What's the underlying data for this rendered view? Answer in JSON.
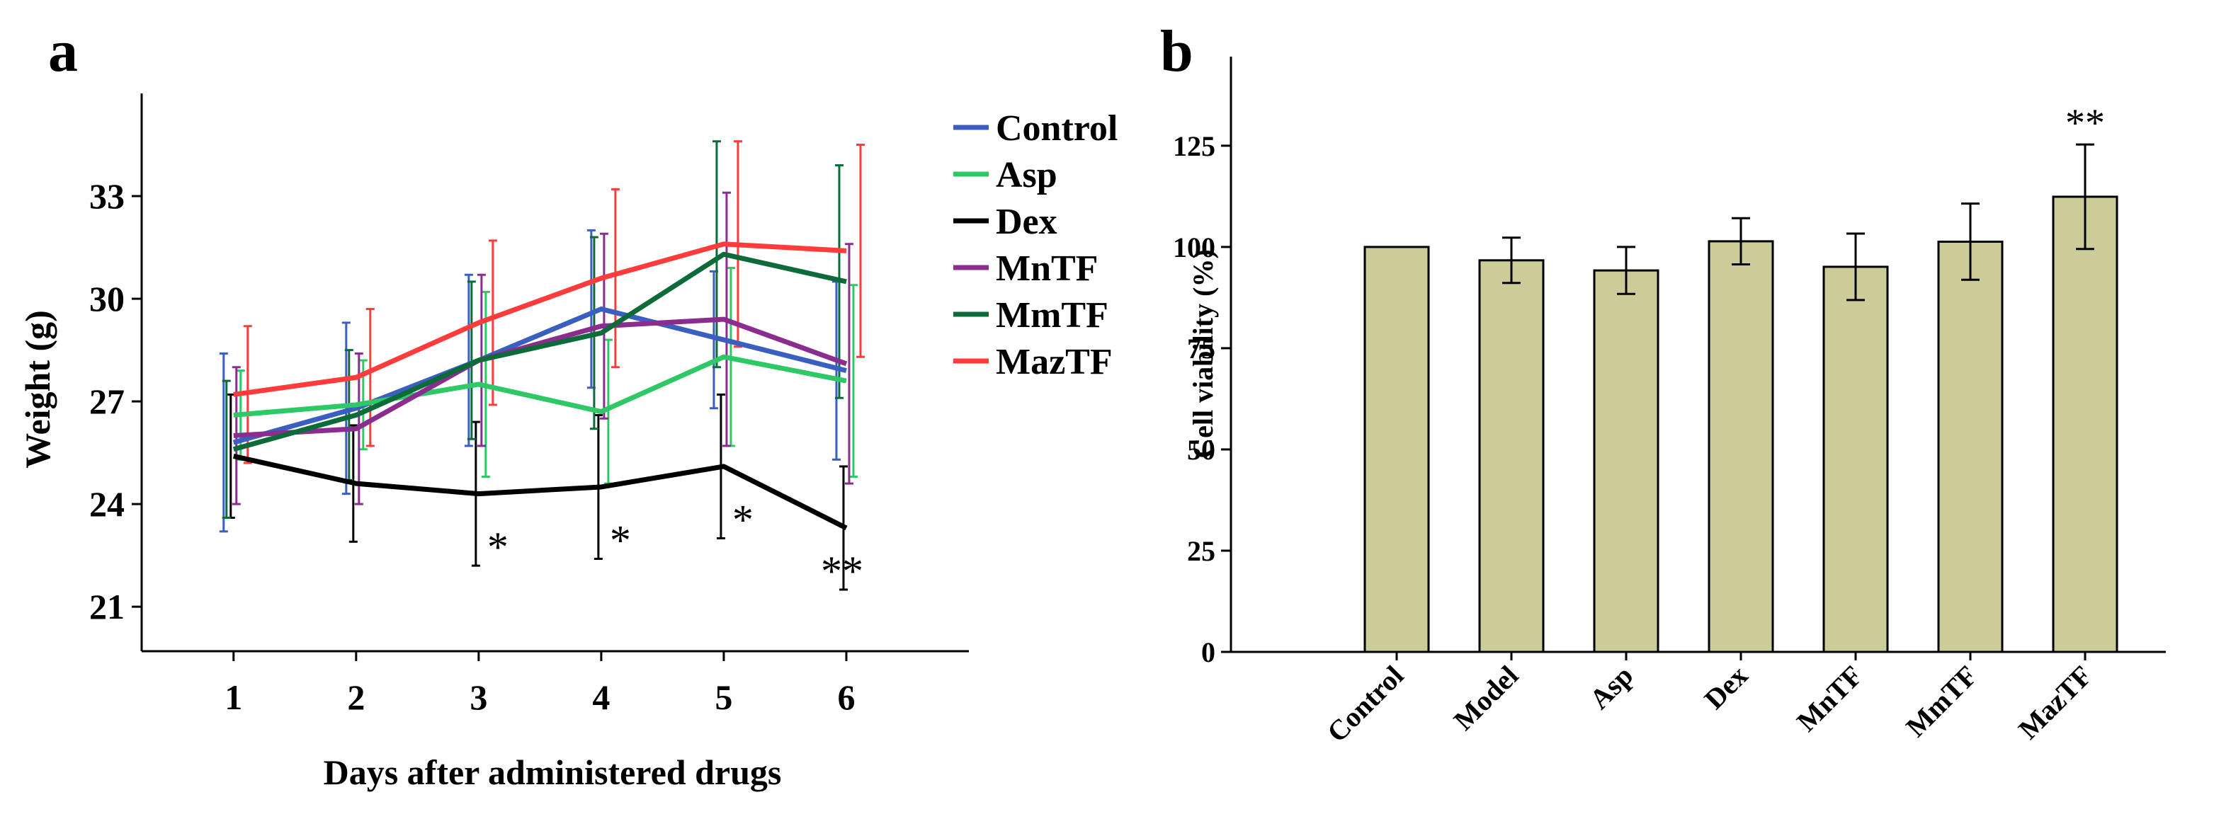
{
  "chart_data": [
    {
      "panel": "a",
      "type": "line",
      "title": "",
      "xlabel": "Days after administered drugs",
      "ylabel": "Weight (g)",
      "x": [
        1,
        2,
        3,
        4,
        5,
        6
      ],
      "xticks": [
        "1",
        "2",
        "3",
        "4",
        "5",
        "6"
      ],
      "xlim": [
        0.25,
        7
      ],
      "yticks": [
        21,
        24,
        27,
        30,
        33
      ],
      "ylim": [
        19.7,
        36
      ],
      "legend": "top-right",
      "series": [
        {
          "name": "Control",
          "color": "#3b5fc0",
          "values": [
            25.8,
            26.8,
            28.2,
            29.7,
            28.8,
            27.9
          ],
          "err": [
            2.6,
            2.5,
            2.5,
            2.3,
            2.0,
            2.6
          ]
        },
        {
          "name": "Asp",
          "color": "#2ec866",
          "values": [
            26.6,
            26.9,
            27.5,
            26.7,
            28.3,
            27.6
          ],
          "err": [
            1.3,
            1.3,
            2.7,
            2.1,
            2.6,
            2.8
          ]
        },
        {
          "name": "Dex",
          "color": "#000000",
          "values": [
            25.4,
            24.6,
            24.3,
            24.5,
            25.1,
            23.3
          ],
          "err": [
            1.8,
            1.7,
            2.1,
            2.1,
            2.1,
            1.8
          ]
        },
        {
          "name": "MnTF",
          "color": "#8b2c8f",
          "values": [
            26.0,
            26.2,
            28.2,
            29.2,
            29.4,
            28.1
          ],
          "err": [
            2.0,
            2.2,
            2.5,
            2.7,
            3.7,
            3.5
          ]
        },
        {
          "name": "MmTF",
          "color": "#0d6b3a",
          "values": [
            25.6,
            26.6,
            28.2,
            29.0,
            31.3,
            30.5
          ],
          "err": [
            2.0,
            1.9,
            2.3,
            2.8,
            3.3,
            3.4
          ]
        },
        {
          "name": "MazTF",
          "color": "#ff3b3b",
          "values": [
            27.2,
            27.7,
            29.3,
            30.6,
            31.6,
            31.4
          ],
          "err": [
            2.0,
            2.0,
            2.4,
            2.6,
            3.0,
            3.1
          ]
        }
      ],
      "annotations": [
        {
          "x": 3,
          "text": "*"
        },
        {
          "x": 4,
          "text": "*"
        },
        {
          "x": 5,
          "text": "*"
        },
        {
          "x": 6,
          "text": "**"
        }
      ]
    },
    {
      "panel": "b",
      "type": "bar",
      "title": "",
      "xlabel": "",
      "ylabel": "Cell viability (%)",
      "categories": [
        "Control",
        "Model",
        "Asp",
        "Dex",
        "MnTF",
        "MmTF",
        "MazTF"
      ],
      "values": [
        100,
        96.7,
        94.2,
        101.4,
        95.1,
        101.3,
        112.4
      ],
      "errors": [
        0,
        5.6,
        5.8,
        5.7,
        8.2,
        9.4,
        12.9
      ],
      "yticks": [
        0,
        25,
        50,
        75,
        100,
        125
      ],
      "ylim": [
        0,
        147
      ],
      "bar_color": "#cccc99",
      "annotations": [
        {
          "category": "MazTF",
          "text": "**"
        }
      ]
    }
  ],
  "panel_labels": {
    "a": "a",
    "b": "b"
  }
}
